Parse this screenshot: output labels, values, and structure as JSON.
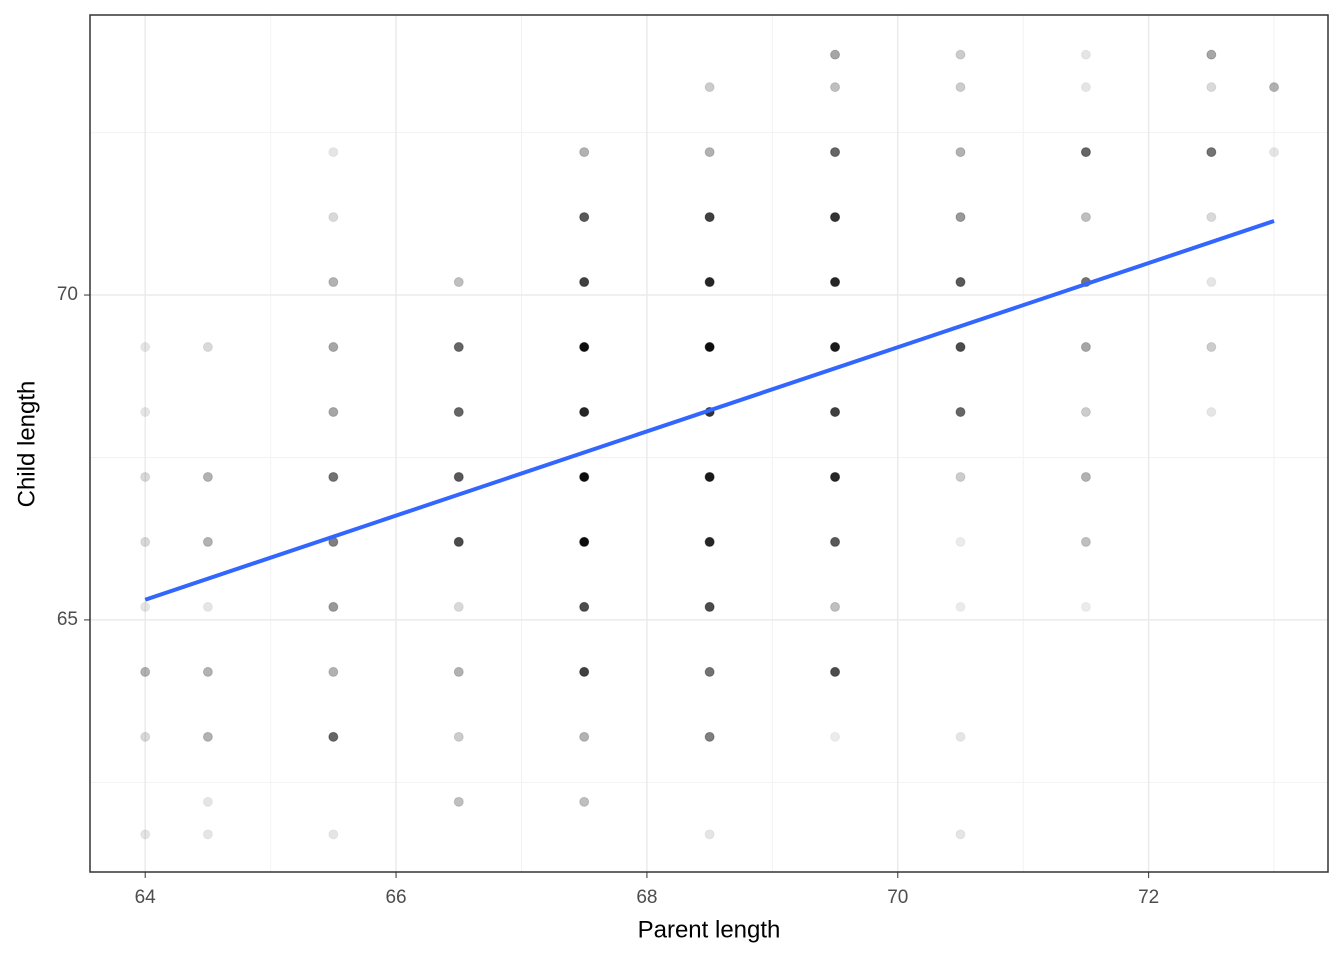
{
  "chart_data": {
    "type": "scatter",
    "x_label": "Parent length",
    "y_label": "Child length",
    "xlim": [
      63.56,
      73.43
    ],
    "ylim": [
      61.12,
      74.31
    ],
    "xticks": [
      64,
      66,
      68,
      70,
      72
    ],
    "yticks": [
      65,
      70
    ],
    "grid": true,
    "point_color": "#000000",
    "points": {
      "x": [
        64,
        64,
        64,
        64,
        64,
        64,
        64,
        64,
        64.5,
        64.5,
        64.5,
        64.5,
        64.5,
        64.5,
        64.5,
        64.5,
        65.5,
        65.5,
        65.5,
        65.5,
        65.5,
        65.5,
        65.5,
        65.5,
        65.5,
        65.5,
        65.5,
        66.5,
        66.5,
        66.5,
        66.5,
        66.5,
        66.5,
        66.5,
        66.5,
        66.5,
        67.5,
        67.5,
        67.5,
        67.5,
        67.5,
        67.5,
        67.5,
        67.5,
        67.5,
        67.5,
        67.5,
        68.5,
        68.5,
        68.5,
        68.5,
        68.5,
        68.5,
        68.5,
        68.5,
        68.5,
        68.5,
        68.5,
        68.5,
        69.5,
        69.5,
        69.5,
        69.5,
        69.5,
        69.5,
        69.5,
        69.5,
        69.5,
        69.5,
        69.5,
        69.5,
        70.5,
        70.5,
        70.5,
        70.5,
        70.5,
        70.5,
        70.5,
        70.5,
        70.5,
        70.5,
        70.5,
        70.5,
        71.5,
        71.5,
        71.5,
        71.5,
        71.5,
        71.5,
        71.5,
        71.5,
        71.5,
        71.5,
        72.5,
        72.5,
        72.5,
        72.5,
        72.5,
        72.5,
        72.5,
        73,
        73
      ],
      "y": [
        69.2,
        68.2,
        67.2,
        66.2,
        65.2,
        64.2,
        63.2,
        61.7,
        69.2,
        67.2,
        66.2,
        65.2,
        64.2,
        63.2,
        62.2,
        61.7,
        72.2,
        71.2,
        70.2,
        69.2,
        68.2,
        67.2,
        66.2,
        65.2,
        64.2,
        63.2,
        61.7,
        70.2,
        69.2,
        68.2,
        67.2,
        66.2,
        65.2,
        64.2,
        63.2,
        62.2,
        72.2,
        71.2,
        70.2,
        69.2,
        68.2,
        67.2,
        66.2,
        65.2,
        64.2,
        63.2,
        62.2,
        73.2,
        72.2,
        71.2,
        70.2,
        69.2,
        68.2,
        67.2,
        66.2,
        65.2,
        64.2,
        63.2,
        61.7,
        73.7,
        73.2,
        72.2,
        71.2,
        70.2,
        69.2,
        68.2,
        67.2,
        66.2,
        65.2,
        64.2,
        63.2,
        73.7,
        73.2,
        72.2,
        71.2,
        70.2,
        69.2,
        68.2,
        67.2,
        66.2,
        65.2,
        63.2,
        61.7,
        73.7,
        73.2,
        72.2,
        71.2,
        70.2,
        69.2,
        68.2,
        67.2,
        66.2,
        65.2,
        73.7,
        73.2,
        72.2,
        71.2,
        70.2,
        69.2,
        68.2,
        73.2,
        72.2
      ],
      "opacity": [
        0.1,
        0.1,
        0.15,
        0.15,
        0.1,
        0.3,
        0.15,
        0.1,
        0.15,
        0.3,
        0.3,
        0.1,
        0.3,
        0.3,
        0.1,
        0.1,
        0.1,
        0.15,
        0.3,
        0.35,
        0.35,
        0.55,
        0.5,
        0.4,
        0.3,
        0.6,
        0.1,
        0.25,
        0.6,
        0.6,
        0.65,
        0.7,
        0.15,
        0.3,
        0.2,
        0.25,
        0.3,
        0.65,
        0.75,
        0.95,
        0.85,
        0.95,
        0.95,
        0.7,
        0.75,
        0.3,
        0.25,
        0.2,
        0.3,
        0.75,
        0.85,
        0.95,
        0.8,
        0.9,
        0.85,
        0.7,
        0.55,
        0.5,
        0.1,
        0.35,
        0.25,
        0.6,
        0.8,
        0.85,
        0.9,
        0.75,
        0.85,
        0.65,
        0.25,
        0.7,
        0.08,
        0.2,
        0.2,
        0.3,
        0.4,
        0.65,
        0.7,
        0.6,
        0.2,
        0.08,
        0.08,
        0.1,
        0.1,
        0.1,
        0.1,
        0.6,
        0.25,
        0.55,
        0.35,
        0.2,
        0.3,
        0.25,
        0.08,
        0.35,
        0.15,
        0.55,
        0.15,
        0.1,
        0.2,
        0.1,
        0.3,
        0.1
      ]
    },
    "fit_line": {
      "x": [
        64,
        73
      ],
      "y": [
        65.31,
        71.14
      ],
      "color": "#3366ff"
    }
  }
}
